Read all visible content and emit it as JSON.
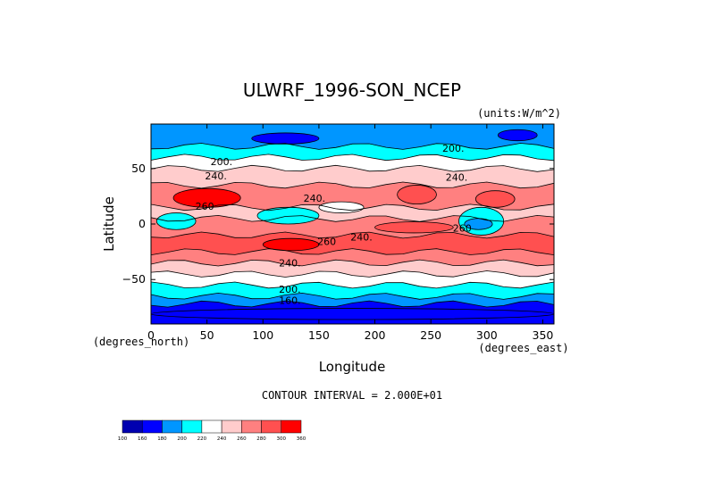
{
  "chart_data": {
    "type": "heatmap",
    "title": "ULWRF_1996-SON_NCEP",
    "units": "(units:W/m^2)",
    "xlabel": "Longitude",
    "ylabel": "Latitude",
    "x_unit_label": "(degrees_east)",
    "y_unit_label": "(degrees_north)",
    "xlim": [
      0,
      360
    ],
    "ylim": [
      -90,
      90
    ],
    "x_ticks": [
      0,
      50,
      100,
      150,
      200,
      250,
      300,
      350
    ],
    "y_ticks": [
      50,
      0,
      -50
    ],
    "contour_interval_text": "CONTOUR INTERVAL = 2.000E+01",
    "contour_labels": [
      {
        "text": "200.",
        "lon": 63,
        "lat": 53
      },
      {
        "text": "200.",
        "lon": 270,
        "lat": 65
      },
      {
        "text": "240.",
        "lon": 58,
        "lat": 40
      },
      {
        "text": "240.",
        "lon": 273,
        "lat": 39
      },
      {
        "text": "240.",
        "lon": 146,
        "lat": 20
      },
      {
        "text": "260",
        "lon": 48,
        "lat": 13
      },
      {
        "text": "240.",
        "lon": 188,
        "lat": -15
      },
      {
        "text": "260",
        "lon": 278,
        "lat": -7
      },
      {
        "text": "260",
        "lon": 157,
        "lat": -19
      },
      {
        "text": "240.",
        "lon": 124,
        "lat": -38
      },
      {
        "text": "200.",
        "lon": 124,
        "lat": -62
      },
      {
        "text": "160.",
        "lon": 124,
        "lat": -72
      }
    ],
    "colorbar": {
      "levels": [
        "100",
        "160",
        "180",
        "200",
        "220",
        "240",
        "260",
        "280",
        "300",
        "360"
      ],
      "colors": [
        "#0000b0",
        "#0000ff",
        "#0096ff",
        "#00ffff",
        "#ffffff",
        "#ffcccc",
        "#ff8080",
        "#ff5050",
        "#ff0000"
      ]
    },
    "bands": [
      {
        "from": 90,
        "to": 70,
        "value": 195
      },
      {
        "from": 70,
        "to": 60,
        "value": 212
      },
      {
        "from": 60,
        "to": 50,
        "value": 228
      },
      {
        "from": 50,
        "to": 35,
        "value": 248
      },
      {
        "from": 35,
        "to": 15,
        "value": 272
      },
      {
        "from": 15,
        "to": 5,
        "value": 248
      },
      {
        "from": 5,
        "to": -10,
        "value": 265
      },
      {
        "from": -10,
        "to": -25,
        "value": 280
      },
      {
        "from": -25,
        "to": -35,
        "value": 262
      },
      {
        "from": -35,
        "to": -45,
        "value": 245
      },
      {
        "from": -45,
        "to": -55,
        "value": 228
      },
      {
        "from": -55,
        "to": -65,
        "value": 212
      },
      {
        "from": -65,
        "to": -72,
        "value": 195
      },
      {
        "from": -72,
        "to": -90,
        "value": 170
      }
    ],
    "features": [
      {
        "lon_from": 20,
        "lon_to": 80,
        "lat_from": 32,
        "lat_to": 15,
        "value": 305
      },
      {
        "lon_from": 220,
        "lon_to": 255,
        "lat_from": 35,
        "lat_to": 18,
        "value": 285
      },
      {
        "lon_from": 290,
        "lon_to": 325,
        "lat_from": 30,
        "lat_to": 15,
        "value": 285
      },
      {
        "lon_from": 100,
        "lon_to": 150,
        "lat_from": -13,
        "lat_to": -24,
        "value": 305
      },
      {
        "lon_from": 200,
        "lon_to": 270,
        "lat_from": 2,
        "lat_to": -8,
        "value": 285
      },
      {
        "lon_from": 150,
        "lon_to": 190,
        "lat_from": 20,
        "lat_to": 10,
        "value": 232
      },
      {
        "lon_from": 95,
        "lon_to": 150,
        "lat_from": 15,
        "lat_to": 0,
        "value": 212
      },
      {
        "lon_from": 5,
        "lon_to": 40,
        "lat_from": 10,
        "lat_to": -5,
        "value": 212
      },
      {
        "lon_from": 275,
        "lon_to": 315,
        "lat_from": 15,
        "lat_to": -10,
        "value": 212
      },
      {
        "lon_from": 280,
        "lon_to": 305,
        "lat_from": 5,
        "lat_to": -5,
        "value": 195
      },
      {
        "lon_from": 310,
        "lon_to": 345,
        "lat_from": 85,
        "lat_to": 75,
        "value": 170
      },
      {
        "lon_from": 90,
        "lon_to": 150,
        "lat_from": 82,
        "lat_to": 72,
        "value": 170
      },
      {
        "lon_from": 0,
        "lon_to": 360,
        "lat_from": -76,
        "lat_to": -86,
        "value": 160
      }
    ]
  }
}
